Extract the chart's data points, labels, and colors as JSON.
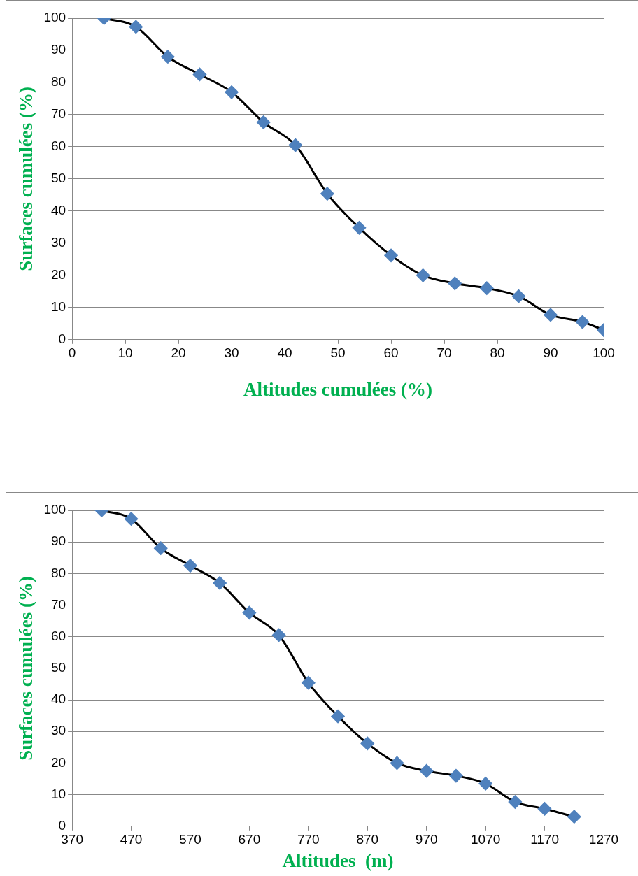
{
  "chart_data": [
    {
      "type": "line",
      "xlabel": "Altitudes cumulées (%)",
      "ylabel": "Surfaces cumulées (%)",
      "x": [
        6,
        12,
        18,
        24,
        30,
        36,
        42,
        48,
        54,
        60,
        66,
        72,
        78,
        84,
        90,
        96,
        100
      ],
      "series": [
        {
          "color": "#000000",
          "colors": [
            "#4f81bd",
            "#4f81bd",
            "#4f81bd",
            "#4f81bd",
            "#4f81bd",
            "#4f81bd",
            "#4f81bd",
            "#4f81bd",
            "#4f81bd",
            "#4f81bd",
            "#4f81bd",
            "#4f81bd",
            "#4f81bd",
            "#4f81bd",
            "#4f81bd",
            "#4f81bd",
            "#4f81bd"
          ],
          "values": [
            100,
            97.3,
            88,
            82.5,
            77,
            67.6,
            60.5,
            45.4,
            34.8,
            26.2,
            20,
            17.5,
            16,
            13.5,
            7.7,
            5.5,
            3
          ]
        }
      ],
      "xlim": [
        0,
        100
      ],
      "xticks": [
        0,
        10,
        20,
        30,
        40,
        50,
        60,
        70,
        80,
        90,
        100
      ],
      "ylim": [
        0,
        100
      ],
      "yticks": [
        0,
        10,
        20,
        30,
        40,
        50,
        60,
        70,
        80,
        90,
        100
      ],
      "grid": "y",
      "marker": "diamond"
    },
    {
      "type": "line",
      "xlabel": "Altitudes  (m)",
      "ylabel": "Surfaces cumulées (%)",
      "x": [
        420,
        470,
        520,
        570,
        620,
        670,
        720,
        770,
        820,
        870,
        920,
        970,
        1020,
        1070,
        1120,
        1170,
        1220
      ],
      "series": [
        {
          "color": "#000000",
          "colors": [
            "#4f81bd",
            "#4f81bd",
            "#4f81bd",
            "#4f81bd",
            "#4f81bd",
            "#4f81bd",
            "#4f81bd",
            "#4f81bd",
            "#4f81bd",
            "#4f81bd",
            "#4f81bd",
            "#4f81bd",
            "#4f81bd",
            "#4f81bd",
            "#4f81bd",
            "#4f81bd",
            "#4f81bd"
          ],
          "values": [
            100,
            97.3,
            88,
            82.5,
            77,
            67.6,
            60.5,
            45.4,
            34.8,
            26.2,
            20,
            17.5,
            16,
            13.5,
            7.7,
            5.5,
            3
          ]
        }
      ],
      "xlim": [
        370,
        1270
      ],
      "xticks": [
        370,
        470,
        570,
        670,
        770,
        870,
        970,
        1070,
        1170,
        1270
      ],
      "ylim": [
        0,
        100
      ],
      "yticks": [
        0,
        10,
        20,
        30,
        40,
        50,
        60,
        70,
        80,
        90,
        100
      ],
      "grid": "y",
      "marker": "diamond"
    }
  ]
}
